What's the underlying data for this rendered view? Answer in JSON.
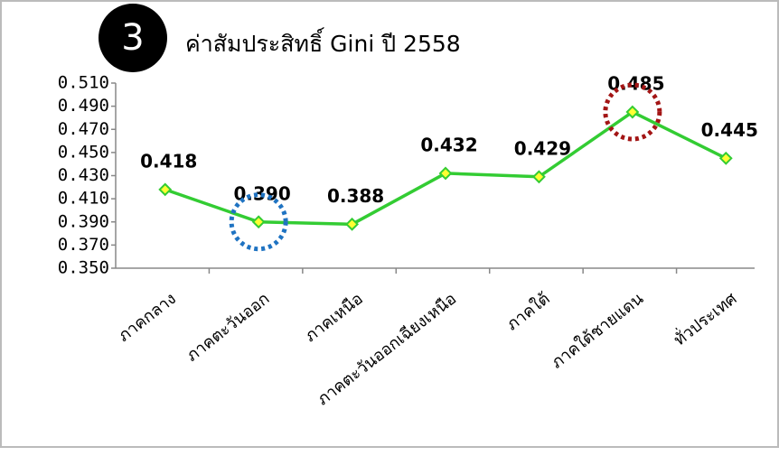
{
  "chart_data": {
    "type": "line",
    "badge": "3",
    "title": "ค่าสัมประสิทธิ์ Gini ปี 2558",
    "categories": [
      "ภาคกลาง",
      "ภาคตะวันออก",
      "ภาคเหนือ",
      "ภาคตะวันออกเฉียงเหนือ",
      "ภาคใต้",
      "ภาคใต้ชายแดน",
      "ทั่วประเทศ"
    ],
    "values": [
      0.418,
      0.39,
      0.388,
      0.432,
      0.429,
      0.485,
      0.445
    ],
    "value_labels": [
      "0.418",
      "0.390",
      "0.388",
      "0.432",
      "0.429",
      "0.485",
      "0.445"
    ],
    "color": "#33cc33",
    "marker_color": "#ffff33",
    "ylim": [
      0.35,
      0.51
    ],
    "yticks": [
      {
        "value": 0.35,
        "label": "0.350"
      },
      {
        "value": 0.37,
        "label": "0.370"
      },
      {
        "value": 0.39,
        "label": "0.390"
      },
      {
        "value": 0.41,
        "label": "0.410"
      },
      {
        "value": 0.43,
        "label": "0.430"
      },
      {
        "value": 0.45,
        "label": "0.450"
      },
      {
        "value": 0.47,
        "label": "0.470"
      },
      {
        "value": 0.49,
        "label": "0.490"
      },
      {
        "value": 0.51,
        "label": "0.510"
      }
    ],
    "grid": false
  }
}
